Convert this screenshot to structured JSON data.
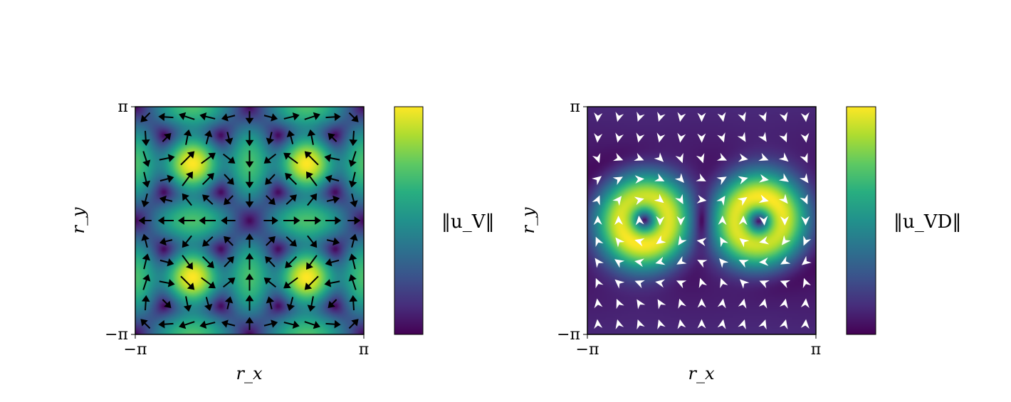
{
  "chart_data": [
    {
      "type": "heatmap",
      "subtype": "vector-field",
      "xlabel": "r_x",
      "ylabel": "r_y",
      "xlim": [
        -3.14159,
        3.14159
      ],
      "ylim": [
        -3.14159,
        3.14159
      ],
      "x_ticks": [
        "−π",
        "π"
      ],
      "y_ticks": [
        "−π",
        "π"
      ],
      "colorbar_label": "‖u_V‖",
      "colormap": "viridis",
      "arrow_color": "#000000",
      "field": "u_V",
      "grid": false
    },
    {
      "type": "heatmap",
      "subtype": "vector-field",
      "xlabel": "r_x",
      "ylabel": "r_y",
      "xlim": [
        -3.14159,
        3.14159
      ],
      "ylim": [
        -3.14159,
        3.14159
      ],
      "x_ticks": [
        "−π",
        "π"
      ],
      "y_ticks": [
        "−π",
        "π"
      ],
      "colorbar_label": "‖u_VD‖",
      "colormap": "viridis",
      "arrow_color": "#ffffff",
      "field": "u_VD",
      "grid": false
    }
  ]
}
